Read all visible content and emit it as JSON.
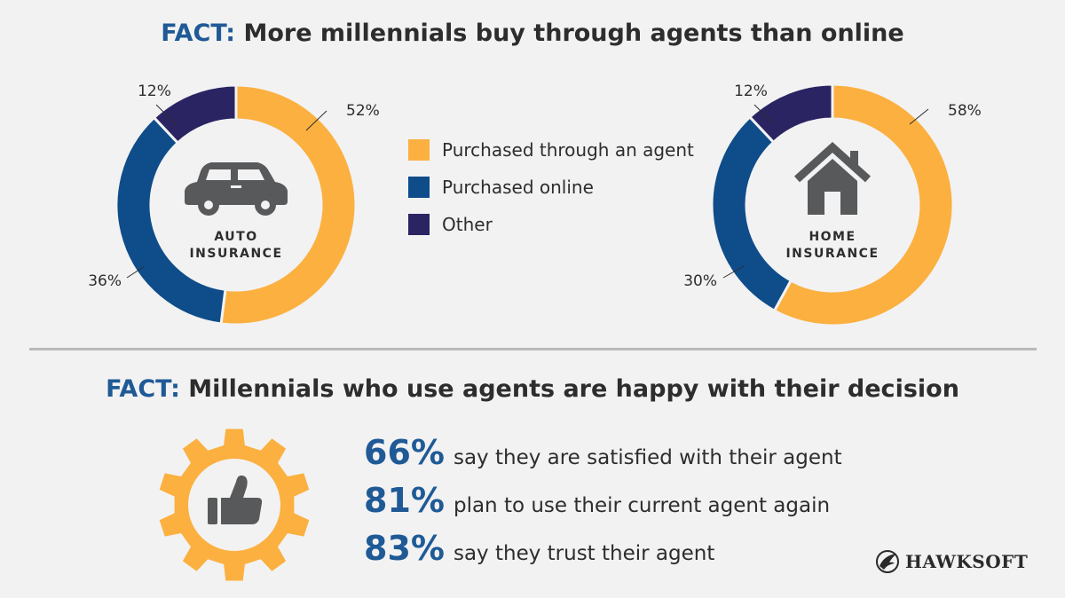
{
  "heading1": {
    "fact": "FACT:",
    "text": " More millennials buy through agents than online"
  },
  "heading2": {
    "fact": "FACT:",
    "text": " Millennials who use agents are happy with their decision"
  },
  "legend": [
    {
      "label": "Purchased through an agent",
      "color": "#fbb040"
    },
    {
      "label": "Purchased online",
      "color": "#0f4c8a"
    },
    {
      "label": "Other",
      "color": "#2a2463"
    }
  ],
  "chart_data": [
    {
      "type": "pie",
      "subtype": "donut",
      "center_label": [
        "AUTO",
        "INSURANCE"
      ],
      "center_icon": "car-icon",
      "categories": [
        "Purchased through an agent",
        "Purchased online",
        "Other"
      ],
      "values": [
        52,
        36,
        12
      ],
      "labels": [
        "52%",
        "36%",
        "12%"
      ],
      "colors": [
        "#fbb040",
        "#0f4c8a",
        "#2a2463"
      ]
    },
    {
      "type": "pie",
      "subtype": "donut",
      "center_label": [
        "HOME",
        "INSURANCE"
      ],
      "center_icon": "house-icon",
      "categories": [
        "Purchased through an agent",
        "Purchased online",
        "Other"
      ],
      "values": [
        58,
        30,
        12
      ],
      "labels": [
        "58%",
        "30%",
        "12%"
      ],
      "colors": [
        "#fbb040",
        "#0f4c8a",
        "#2a2463"
      ]
    }
  ],
  "stats": [
    {
      "value": "66%",
      "text": "say they are satisfied with their agent"
    },
    {
      "value": "81%",
      "text": "plan to use their current agent again"
    },
    {
      "value": "83%",
      "text": "say they trust their agent"
    }
  ],
  "gear_icon": "gear-thumbs-up-icon",
  "logo": {
    "text": "HAWKSOFT",
    "icon": "hawk-icon"
  }
}
